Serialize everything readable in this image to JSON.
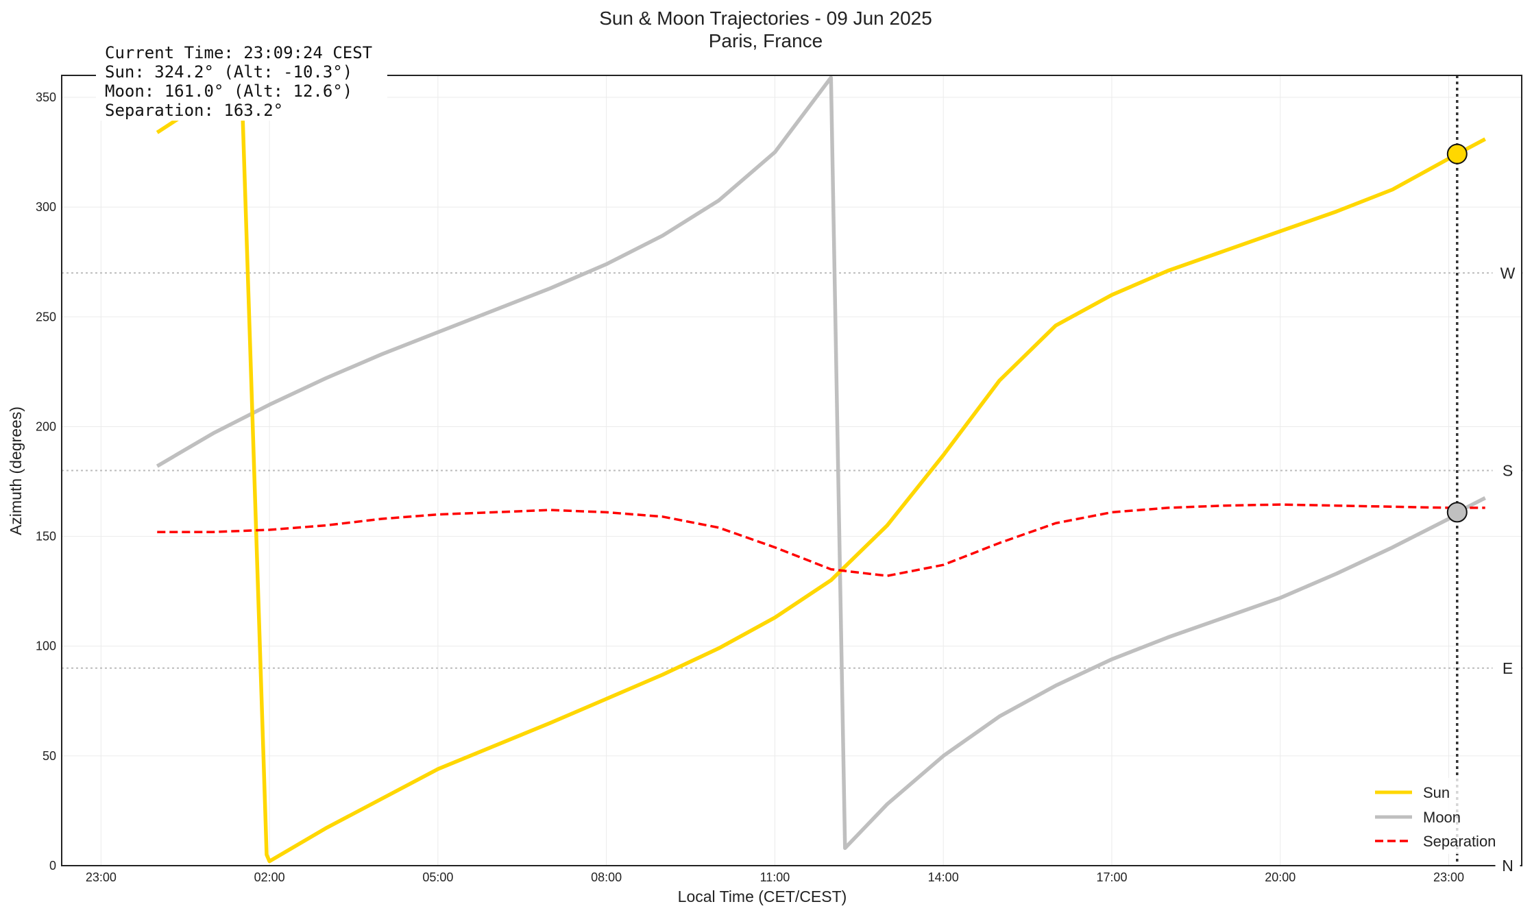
{
  "chart_data": {
    "type": "line",
    "title": "Sun & Moon Trajectories - 09 Jun 2025",
    "subtitle": "Paris, France",
    "xlabel": "Local Time (CET/CEST)",
    "ylabel": "Azimuth (degrees)",
    "x_unit": "hours since 23:00 on 08 Jun",
    "xlim": [
      -0.7,
      25.3
    ],
    "ylim": [
      0,
      360
    ],
    "grid": true,
    "legend_position": "bottom-right",
    "x_ticks": [
      {
        "x": 0,
        "label": "23:00"
      },
      {
        "x": 3,
        "label": "02:00"
      },
      {
        "x": 6,
        "label": "05:00"
      },
      {
        "x": 9,
        "label": "08:00"
      },
      {
        "x": 12,
        "label": "11:00"
      },
      {
        "x": 15,
        "label": "14:00"
      },
      {
        "x": 18,
        "label": "17:00"
      },
      {
        "x": 21,
        "label": "20:00"
      },
      {
        "x": 24,
        "label": "23:00"
      }
    ],
    "y_ticks": [
      0,
      50,
      100,
      150,
      200,
      250,
      300,
      350
    ],
    "direction_lines": [
      {
        "y": 90,
        "label": "E"
      },
      {
        "y": 180,
        "label": "S"
      },
      {
        "y": 270,
        "label": "W"
      },
      {
        "y": 0,
        "label": "N"
      }
    ],
    "series": [
      {
        "name": "Sun",
        "color": "#FFD700",
        "style": "solid",
        "points": [
          [
            1,
            334
          ],
          [
            2.5,
            359
          ],
          [
            2.95,
            5
          ],
          [
            3,
            2
          ],
          [
            4,
            17
          ],
          [
            6,
            44
          ],
          [
            8,
            65
          ],
          [
            9,
            76
          ],
          [
            10,
            87
          ],
          [
            11,
            99
          ],
          [
            12,
            113
          ],
          [
            13,
            130
          ],
          [
            14,
            155
          ],
          [
            15,
            187
          ],
          [
            16,
            221
          ],
          [
            17,
            246
          ],
          [
            18,
            260
          ],
          [
            19,
            271
          ],
          [
            20,
            280
          ],
          [
            21,
            289
          ],
          [
            22,
            298
          ],
          [
            23,
            308
          ],
          [
            24.15,
            324.2
          ],
          [
            24.65,
            331
          ]
        ]
      },
      {
        "name": "Moon",
        "color": "#BFBFBF",
        "style": "solid",
        "points": [
          [
            1,
            182
          ],
          [
            2,
            197
          ],
          [
            3,
            210
          ],
          [
            4,
            222
          ],
          [
            5,
            233
          ],
          [
            6,
            243
          ],
          [
            7,
            253
          ],
          [
            8,
            263
          ],
          [
            9,
            274
          ],
          [
            10,
            287
          ],
          [
            11,
            303
          ],
          [
            12,
            325
          ],
          [
            13,
            359
          ],
          [
            13.25,
            8
          ],
          [
            14,
            28
          ],
          [
            15,
            50
          ],
          [
            16,
            68
          ],
          [
            17,
            82
          ],
          [
            18,
            94
          ],
          [
            19,
            104
          ],
          [
            20,
            113
          ],
          [
            21,
            122
          ],
          [
            22,
            133
          ],
          [
            23,
            145
          ],
          [
            24,
            158
          ],
          [
            24.15,
            161
          ],
          [
            24.65,
            167.5
          ]
        ]
      },
      {
        "name": "Separation",
        "color": "#FF0000",
        "style": "dashed",
        "points": [
          [
            1,
            152
          ],
          [
            2,
            152
          ],
          [
            3,
            153
          ],
          [
            4,
            155
          ],
          [
            5,
            158
          ],
          [
            6,
            160
          ],
          [
            7,
            161
          ],
          [
            8,
            162
          ],
          [
            9,
            161
          ],
          [
            10,
            159
          ],
          [
            11,
            154
          ],
          [
            12,
            145
          ],
          [
            13,
            135
          ],
          [
            14,
            132
          ],
          [
            15,
            137
          ],
          [
            16,
            147
          ],
          [
            17,
            156
          ],
          [
            18,
            161
          ],
          [
            19,
            163
          ],
          [
            20,
            164
          ],
          [
            21,
            164.5
          ],
          [
            22,
            164
          ],
          [
            23,
            163.5
          ],
          [
            24,
            163
          ],
          [
            24.65,
            163
          ]
        ]
      }
    ],
    "current_marker": {
      "x": 24.15,
      "sun": 324.2,
      "moon": 161.0
    }
  },
  "info_box": {
    "line1": "Current Time: 23:09:24 CEST",
    "line2": "Sun: 324.2° (Alt: -10.3°)",
    "line3": "Moon: 161.0° (Alt: 12.6°)",
    "line4": "Separation: 163.2°"
  }
}
